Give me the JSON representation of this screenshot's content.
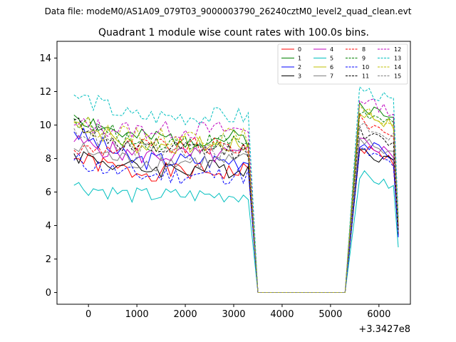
{
  "figure": {
    "suptitle": "Data file: modeM0/AS1A09_079T03_9000003790_26240cztM0_level2_quad_clean.evt"
  },
  "chart_data": {
    "type": "line",
    "title": "Quadrant 1 module wise count rates with 100.0s bins.",
    "xlabel": "",
    "ylabel": "",
    "x_offset_label": "+3.3427e8",
    "xlim": [
      -650,
      6650
    ],
    "ylim": [
      -0.7,
      15
    ],
    "xticks": [
      0,
      1000,
      2000,
      3000,
      4000,
      5000,
      6000
    ],
    "yticks": [
      0,
      2,
      4,
      6,
      8,
      10,
      12,
      14
    ],
    "legend_position": "top-right",
    "legend_columns": 4,
    "shape": {
      "x_start": -300,
      "x_step": 100,
      "high_count": 37,
      "zero_x_start": 3500,
      "zero_count": 19,
      "late_x_start": 5600,
      "late_count": 8,
      "x_last": 6400
    },
    "series": [
      {
        "name": "0",
        "color": "#ff0000",
        "style": "solid",
        "base": 7.2,
        "start": 8.0,
        "late": 8.7,
        "amp": 0.35,
        "seed": 1,
        "last": 3.4
      },
      {
        "name": "1",
        "color": "#008000",
        "style": "solid",
        "base": 9.2,
        "start": 10.6,
        "late": 11.2,
        "amp": 0.35,
        "seed": 2,
        "last": 3.8
      },
      {
        "name": "2",
        "color": "#0000ff",
        "style": "solid",
        "base": 7.9,
        "start": 9.6,
        "late": 9.0,
        "amp": 0.35,
        "seed": 3,
        "last": 3.3
      },
      {
        "name": "3",
        "color": "#000000",
        "style": "solid",
        "base": 7.4,
        "start": 8.3,
        "late": 8.6,
        "amp": 0.35,
        "seed": 4,
        "last": 3.4
      },
      {
        "name": "4",
        "color": "#bf00bf",
        "style": "solid",
        "base": 8.2,
        "start": 9.0,
        "late": 9.1,
        "amp": 0.35,
        "seed": 5,
        "last": 3.9
      },
      {
        "name": "5",
        "color": "#00bfbf",
        "style": "solid",
        "base": 5.8,
        "start": 6.4,
        "late": 7.1,
        "amp": 0.3,
        "seed": 6,
        "last": 2.7
      },
      {
        "name": "6",
        "color": "#bfbf00",
        "style": "solid",
        "base": 8.8,
        "start": 10.2,
        "late": 10.8,
        "amp": 0.35,
        "seed": 7,
        "last": 4.3
      },
      {
        "name": "7",
        "color": "#808080",
        "style": "solid",
        "base": 7.8,
        "start": 8.6,
        "late": 9.1,
        "amp": 0.35,
        "seed": 8,
        "last": 3.8
      },
      {
        "name": "8",
        "color": "#ff0000",
        "style": "dashed",
        "base": 8.7,
        "start": 8.5,
        "late": 10.3,
        "amp": 0.35,
        "seed": 9,
        "last": 3.9
      },
      {
        "name": "9",
        "color": "#008000",
        "style": "dashed",
        "base": 9.0,
        "start": 10.4,
        "late": 10.8,
        "amp": 0.35,
        "seed": 10,
        "last": 4.0
      },
      {
        "name": "10",
        "color": "#0000ff",
        "style": "dashed",
        "base": 7.0,
        "start": 7.9,
        "late": 8.5,
        "amp": 0.35,
        "seed": 11,
        "last": 3.4
      },
      {
        "name": "11",
        "color": "#000000",
        "style": "dashed",
        "base": 8.5,
        "start": 10.3,
        "late": 9.6,
        "amp": 0.35,
        "seed": 12,
        "last": 3.7
      },
      {
        "name": "12",
        "color": "#bf00bf",
        "style": "dashed",
        "base": 9.7,
        "start": 10.0,
        "late": 11.6,
        "amp": 0.35,
        "seed": 13,
        "last": 4.4
      },
      {
        "name": "13",
        "color": "#00bfbf",
        "style": "dashed",
        "base": 10.5,
        "start": 11.8,
        "late": 12.2,
        "amp": 0.35,
        "seed": 14,
        "last": 4.5
      },
      {
        "name": "14",
        "color": "#bfbf00",
        "style": "dashed",
        "base": 9.3,
        "start": 10.2,
        "late": 10.9,
        "amp": 0.35,
        "seed": 15,
        "last": 4.2
      },
      {
        "name": "15",
        "color": "#808080",
        "style": "dashed",
        "base": 8.4,
        "start": 9.8,
        "late": 10.1,
        "amp": 0.35,
        "seed": 16,
        "last": 3.7
      }
    ]
  }
}
